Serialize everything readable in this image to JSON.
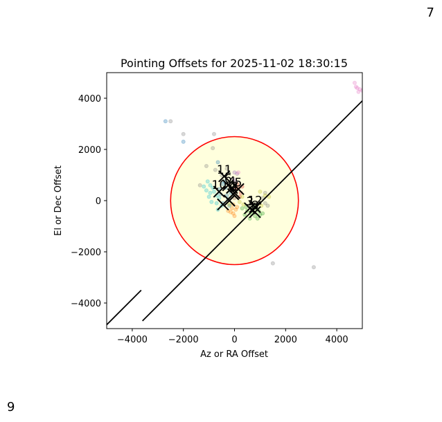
{
  "page": {
    "corner_top_right": "7",
    "corner_bottom_left": "9"
  },
  "chart_data": {
    "type": "scatter",
    "title": "Pointing Offsets for 2025-11-02 18:30:15",
    "xlabel": "Az or RA Offset",
    "ylabel": "El or Dec Offset",
    "xlim": [
      -5000,
      5000
    ],
    "ylim": [
      -5000,
      5000
    ],
    "xticks": [
      -4000,
      -2000,
      0,
      2000,
      4000
    ],
    "yticks": [
      -4000,
      -2000,
      0,
      2000,
      4000
    ],
    "xtick_labels": [
      "−4000",
      "−2000",
      "0",
      "2000",
      "4000"
    ],
    "ytick_labels": [
      "−4000",
      "−2000",
      "0",
      "2000",
      "4000"
    ],
    "grid": false,
    "circle": {
      "center": [
        0,
        0
      ],
      "radius": 2500,
      "edge_color": "#ff0000",
      "fill_color": "#ffffdd"
    },
    "lines": [
      {
        "x": [
          -5000,
          -3650
        ],
        "y": [
          -4850,
          -3500
        ],
        "color": "#000000"
      },
      {
        "x": [
          -3600,
          5000
        ],
        "y": [
          -4700,
          3900
        ],
        "color": "#000000"
      }
    ],
    "colors": {
      "blue": "#1f77b4",
      "orange": "#ff7f0e",
      "green": "#2ca02c",
      "red": "#d62728",
      "purple": "#9467bd",
      "brown": "#8c564b",
      "pink": "#e377c2",
      "gray": "#7f7f7f",
      "olive": "#bcbd22",
      "cyan": "#17becf"
    },
    "series": [
      {
        "color_key": "cyan",
        "points": [
          [
            -1050,
            750
          ],
          [
            -950,
            600
          ],
          [
            -1100,
            400
          ],
          [
            -800,
            350
          ],
          [
            -900,
            -50
          ],
          [
            -1000,
            150
          ],
          [
            -700,
            200
          ],
          [
            -850,
            500
          ],
          [
            -650,
            -350
          ],
          [
            -500,
            -200
          ],
          [
            -700,
            -100
          ],
          [
            -1200,
            550
          ],
          [
            -600,
            100
          ],
          [
            -950,
            300
          ]
        ]
      },
      {
        "color_key": "blue",
        "points": [
          [
            -300,
            200
          ],
          [
            -350,
            500
          ],
          [
            -450,
            -100
          ],
          [
            -250,
            50
          ],
          [
            -150,
            300
          ],
          [
            -550,
            250
          ],
          [
            -400,
            750
          ],
          [
            -200,
            -200
          ],
          [
            -600,
            450
          ],
          [
            -2700,
            3100
          ],
          [
            -2000,
            2300
          ],
          [
            -650,
            1500
          ],
          [
            -450,
            650
          ]
        ]
      },
      {
        "color_key": "orange",
        "points": [
          [
            -100,
            -300
          ],
          [
            -50,
            -500
          ],
          [
            0,
            -600
          ],
          [
            -150,
            -450
          ],
          [
            50,
            -350
          ],
          [
            -250,
            -400
          ],
          [
            100,
            -250
          ],
          [
            -50,
            -150
          ]
        ]
      },
      {
        "color_key": "green",
        "points": [
          [
            500,
            -400
          ],
          [
            650,
            -500
          ],
          [
            800,
            -600
          ],
          [
            950,
            -400
          ],
          [
            450,
            -250
          ],
          [
            700,
            -350
          ],
          [
            850,
            -300
          ],
          [
            1000,
            -550
          ],
          [
            400,
            -550
          ],
          [
            600,
            -700
          ],
          [
            1100,
            -500
          ],
          [
            750,
            -200
          ],
          [
            900,
            -700
          ],
          [
            300,
            -300
          ]
        ]
      },
      {
        "color_key": "red",
        "points": [
          [
            150,
            500
          ],
          [
            250,
            300
          ],
          [
            50,
            450
          ],
          [
            200,
            150
          ],
          [
            100,
            650
          ],
          [
            300,
            550
          ]
        ]
      },
      {
        "color_key": "purple",
        "points": [
          [
            0,
            1100
          ],
          [
            100,
            1050
          ],
          [
            -50,
            850
          ],
          [
            50,
            750
          ]
        ]
      },
      {
        "color_key": "brown",
        "points": [
          [
            -100,
            400
          ],
          [
            -200,
            600
          ],
          [
            50,
            250
          ],
          [
            0,
            100
          ]
        ]
      },
      {
        "color_key": "pink",
        "points": [
          [
            4800,
            4400
          ],
          [
            4900,
            4350
          ],
          [
            4700,
            4600
          ],
          [
            5000,
            4300
          ],
          [
            4850,
            4250
          ],
          [
            4750,
            4450
          ],
          [
            150,
            1100
          ]
        ]
      },
      {
        "color_key": "gray",
        "points": [
          [
            -2500,
            3100
          ],
          [
            -2000,
            2600
          ],
          [
            -800,
            2600
          ],
          [
            -850,
            2050
          ],
          [
            -1100,
            1350
          ],
          [
            -750,
            1200
          ],
          [
            -300,
            1250
          ],
          [
            -500,
            1000
          ],
          [
            1200,
            300
          ],
          [
            1300,
            -200
          ],
          [
            1100,
            100
          ],
          [
            1500,
            -2450
          ],
          [
            3100,
            -2600
          ],
          [
            1200,
            -100
          ],
          [
            -1350,
            600
          ]
        ]
      },
      {
        "color_key": "olive",
        "points": [
          [
            200,
            -50
          ],
          [
            300,
            150
          ],
          [
            1050,
            -200
          ],
          [
            1200,
            200
          ],
          [
            350,
            -150
          ],
          [
            1000,
            350
          ],
          [
            -200,
            -150
          ],
          [
            1350,
            150
          ]
        ]
      }
    ],
    "markers": [
      {
        "x": -600,
        "y": 350,
        "label": "10"
      },
      {
        "x": -400,
        "y": 950,
        "label": "11"
      },
      {
        "x": 0,
        "y": 300,
        "label": "2"
      },
      {
        "x": -100,
        "y": 500,
        "label": "4"
      },
      {
        "x": 150,
        "y": 450,
        "label": "5"
      },
      {
        "x": -250,
        "y": 600,
        "label": "6"
      },
      {
        "x": -50,
        "y": 250,
        "label": "9"
      },
      {
        "x": 600,
        "y": -300,
        "label": "3"
      },
      {
        "x": 800,
        "y": -450,
        "label": "8"
      },
      {
        "x": 800,
        "y": -250,
        "label": "12"
      },
      {
        "x": -450,
        "y": -150,
        "label": ""
      },
      {
        "x": -200,
        "y": 0,
        "label": ""
      }
    ],
    "marker_style": {
      "symbol": "x",
      "color": "#000000"
    }
  }
}
